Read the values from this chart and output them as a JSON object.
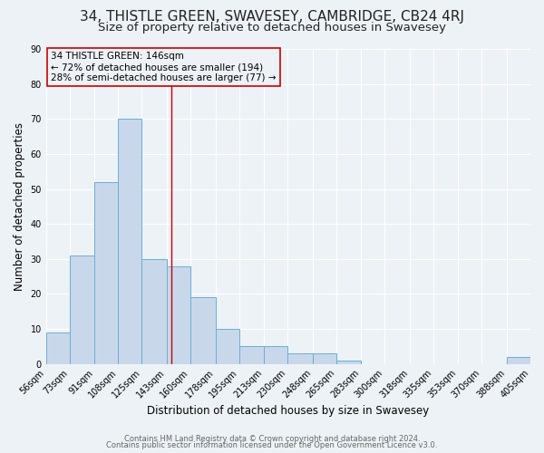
{
  "title": "34, THISTLE GREEN, SWAVESEY, CAMBRIDGE, CB24 4RJ",
  "subtitle": "Size of property relative to detached houses in Swavesey",
  "xlabel": "Distribution of detached houses by size in Swavesey",
  "ylabel": "Number of detached properties",
  "bar_edges": [
    56,
    73,
    91,
    108,
    125,
    143,
    160,
    178,
    195,
    213,
    230,
    248,
    265,
    283,
    300,
    318,
    335,
    353,
    370,
    388,
    405
  ],
  "bar_heights": [
    9,
    31,
    52,
    70,
    30,
    28,
    19,
    10,
    5,
    5,
    3,
    3,
    1,
    0,
    0,
    0,
    0,
    0,
    0,
    2
  ],
  "tick_labels": [
    "56sqm",
    "73sqm",
    "91sqm",
    "108sqm",
    "125sqm",
    "143sqm",
    "160sqm",
    "178sqm",
    "195sqm",
    "213sqm",
    "230sqm",
    "248sqm",
    "265sqm",
    "283sqm",
    "300sqm",
    "318sqm",
    "335sqm",
    "353sqm",
    "370sqm",
    "388sqm",
    "405sqm"
  ],
  "bar_color": "#c8d8ea",
  "bar_edge_color": "#6aaed6",
  "property_line_x": 146,
  "property_line_color": "#cc0000",
  "annotation_box_edge_color": "#cc0000",
  "annotation_lines": [
    "34 THISTLE GREEN: 146sqm",
    "← 72% of detached houses are smaller (194)",
    "28% of semi-detached houses are larger (77) →"
  ],
  "ylim": [
    0,
    90
  ],
  "yticks": [
    0,
    10,
    20,
    30,
    40,
    50,
    60,
    70,
    80,
    90
  ],
  "footer1": "Contains HM Land Registry data © Crown copyright and database right 2024.",
  "footer2": "Contains public sector information licensed under the Open Government Licence v3.0.",
  "background_color": "#edf2f7",
  "plot_bg_color": "#edf2f7",
  "grid_color": "#ffffff",
  "title_fontsize": 11,
  "subtitle_fontsize": 9.5,
  "axis_label_fontsize": 8.5,
  "tick_fontsize": 7,
  "annotation_fontsize": 7.5,
  "footer_fontsize": 6
}
